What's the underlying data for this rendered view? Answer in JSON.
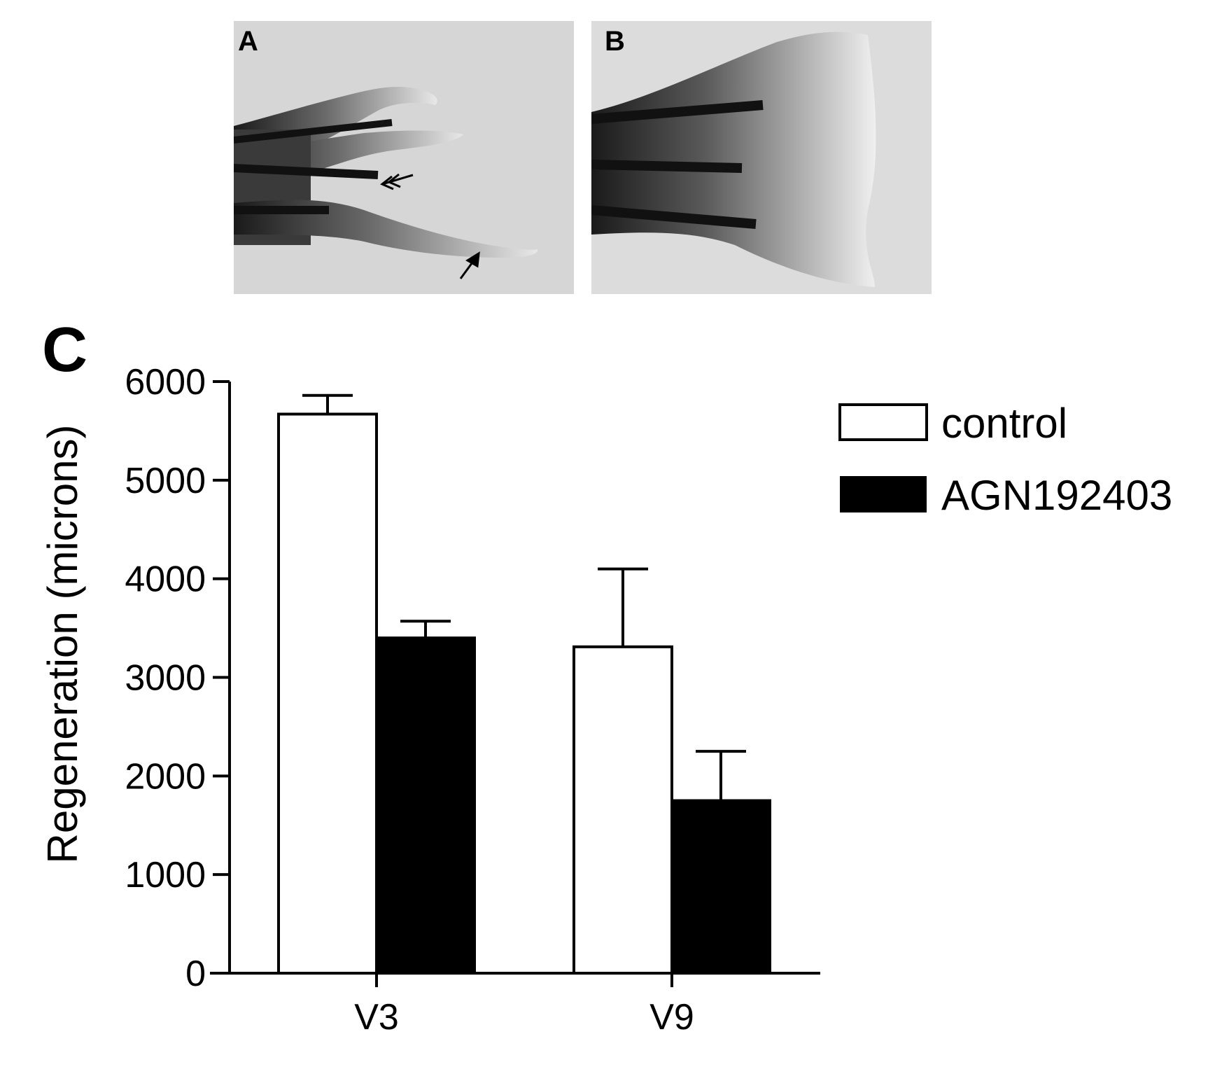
{
  "panels": {
    "a": {
      "letter": "A"
    },
    "b": {
      "letter": "B"
    },
    "c": {
      "letter": "C"
    }
  },
  "colors": {
    "photo_background": "#d4d4d4",
    "control_fill": "#ffffff",
    "agn_fill": "#000000",
    "axis": "#000000"
  },
  "chart_data": {
    "type": "bar",
    "categories": [
      "V3",
      "V9"
    ],
    "series": [
      {
        "name": "control",
        "values": [
          5670,
          3310
        ],
        "errors": [
          190,
          790
        ]
      },
      {
        "name": "AGN192403",
        "values": [
          3400,
          1750
        ],
        "errors": [
          170,
          500
        ]
      }
    ],
    "title": "",
    "xlabel": "",
    "ylabel": "Regeneration (microns)",
    "ylim": [
      0,
      6000
    ],
    "yticks": [
      0,
      1000,
      2000,
      3000,
      4000,
      5000,
      6000
    ],
    "grid": false,
    "legend": "top-right"
  }
}
